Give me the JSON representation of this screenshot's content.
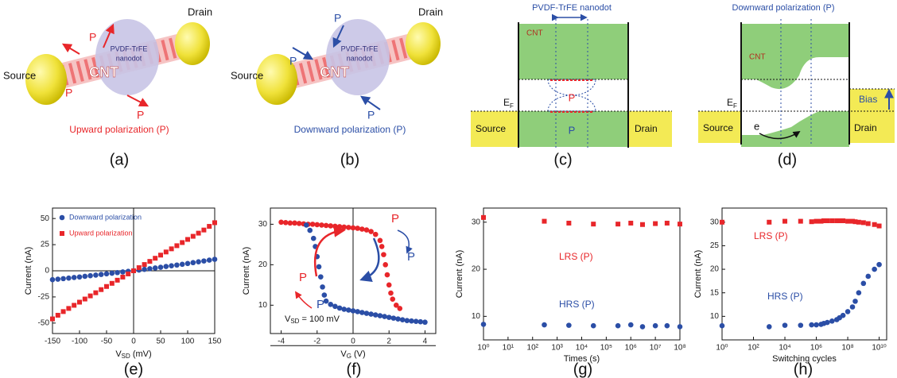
{
  "panel_labels": [
    "(a)",
    "(b)",
    "(c)",
    "(d)",
    "(e)",
    "(f)",
    "(g)",
    "(h)"
  ],
  "diagrams": {
    "a": {
      "source": "Source",
      "drain": "Drain",
      "cnt": "CNT",
      "nanodot": [
        "PVDF-TrFE",
        "nanodot"
      ],
      "p_labels": [
        "P",
        "P",
        "P"
      ],
      "caption": "Upward polarization (P)"
    },
    "b": {
      "source": "Source",
      "drain": "Drain",
      "cnt": "CNT",
      "nanodot": [
        "PVDF-TrFE",
        "nanodot"
      ],
      "p_labels": [
        "P",
        "P",
        "P"
      ],
      "caption": "Downward polarization (P)"
    },
    "c": {
      "nanodot": "PVDF-TrFE nanodot",
      "cnt": "CNT",
      "fermi": {
        "main": "E",
        "sub": "F"
      },
      "p_labels": [
        "P",
        "P"
      ],
      "source": "Source",
      "drain": "Drain"
    },
    "d": {
      "caption": "Downward polarization (P)",
      "cnt": "CNT",
      "fermi": {
        "main": "E",
        "sub": "F"
      },
      "bias": "Bias",
      "electron": "e",
      "source": "Source",
      "drain": "Drain"
    }
  },
  "chart_data": [
    {
      "type": "scatter",
      "x": [
        -150,
        -140,
        -130,
        -120,
        -110,
        -100,
        -90,
        -80,
        -70,
        -60,
        -50,
        -40,
        -30,
        -20,
        -10,
        0,
        10,
        20,
        30,
        40,
        50,
        60,
        70,
        80,
        90,
        100,
        110,
        120,
        130,
        140,
        150
      ],
      "series": [
        {
          "name": "Downward polarization",
          "color": "#2b4ea6",
          "marker": "circle",
          "values": [
            -8.5,
            -8,
            -7.5,
            -7,
            -6.4,
            -5.9,
            -5.3,
            -4.7,
            -4.1,
            -3.5,
            -2.9,
            -2.3,
            -1.7,
            -1.1,
            -0.5,
            0.1,
            0.7,
            1.4,
            2,
            2.7,
            3.4,
            4.1,
            4.8,
            5.5,
            6.2,
            7,
            7.8,
            8.6,
            9.4,
            10.2,
            11
          ]
        },
        {
          "name": "Upward polarization",
          "color": "#e8262a",
          "marker": "square",
          "values": [
            -46,
            -42.5,
            -39,
            -36,
            -33,
            -30,
            -27,
            -24,
            -21,
            -18,
            -15,
            -12,
            -9,
            -6,
            -3,
            0,
            3,
            6,
            9,
            12,
            15,
            18,
            21,
            24,
            27,
            30,
            33,
            36,
            39,
            42.5,
            46
          ]
        }
      ],
      "xlim": [
        -150,
        150
      ],
      "ylim": [
        -60,
        60
      ],
      "xticks": [
        -150,
        -100,
        -50,
        0,
        50,
        100,
        150
      ],
      "yticks": [
        -50,
        -25,
        0,
        25,
        50
      ],
      "x_label": {
        "main": "V",
        "sub": "SD",
        "rest": " (mV)"
      },
      "y_label": "Current (nA)",
      "zero_lines": true,
      "legend": "upper left"
    },
    {
      "type": "scatter",
      "series": [
        {
          "color": "#e8262a",
          "marker": "circle",
          "x": [
            -4,
            -3.75,
            -3.5,
            -3.25,
            -3,
            -2.75,
            -2.5,
            -2.25,
            -2,
            -1.75,
            -1.5,
            -1.25,
            -1,
            -0.75,
            -0.5,
            -0.25,
            0,
            0.25,
            0.5,
            0.75,
            1,
            1.25,
            1.5,
            1.6,
            1.7,
            1.8,
            1.9,
            2,
            2.1,
            2.2,
            2.4,
            2.6
          ],
          "values": [
            30.5,
            30.4,
            30.3,
            30.3,
            30.2,
            30.1,
            30,
            30,
            29.9,
            29.8,
            29.7,
            29.6,
            29.5,
            29.4,
            29.3,
            29.2,
            29.1,
            29,
            28.8,
            28.6,
            28.2,
            27.5,
            26,
            24.5,
            22.5,
            20,
            17.5,
            15,
            13,
            11.5,
            10,
            9.2
          ]
        },
        {
          "color": "#2b4ea6",
          "marker": "circle",
          "x": [
            4,
            3.75,
            3.5,
            3.25,
            3,
            2.75,
            2.5,
            2.25,
            2,
            1.75,
            1.5,
            1.25,
            1,
            0.75,
            0.5,
            0.25,
            0,
            -0.25,
            -0.5,
            -0.75,
            -1,
            -1.25,
            -1.5,
            -1.6,
            -1.7,
            -1.8,
            -1.9,
            -2,
            -2.1,
            -2.2,
            -2.4,
            -2.6
          ],
          "values": [
            5.8,
            5.9,
            6,
            6.1,
            6.2,
            6.4,
            6.6,
            6.8,
            7,
            7.2,
            7.4,
            7.6,
            7.8,
            8,
            8.2,
            8.4,
            8.6,
            8.8,
            9,
            9.3,
            9.7,
            10.2,
            11,
            12.5,
            14.5,
            17,
            19.5,
            22,
            24.5,
            26.5,
            28.5,
            29.8
          ]
        }
      ],
      "xlim": [
        -4.6,
        4.6
      ],
      "ylim": [
        3,
        34
      ],
      "xticks": [
        -4,
        -2,
        0,
        2,
        4
      ],
      "yticks": [
        10,
        20,
        30
      ],
      "x_label": {
        "main": "V",
        "sub": "G",
        "rest": " (V)"
      },
      "y_label": "Current (nA)",
      "zero_lines": true,
      "annotations": [
        "P",
        "P",
        "P",
        "P"
      ],
      "note": {
        "main": "V",
        "sub": "SD",
        "rest": " = 100 mV"
      }
    },
    {
      "type": "scatter",
      "xlog": true,
      "x": [
        1,
        300,
        3000,
        30000,
        300000,
        1000000,
        3000000,
        10000000,
        30000000,
        100000000
      ],
      "series": [
        {
          "color": "#e8262a",
          "marker": "square",
          "values": [
            31,
            30.2,
            29.8,
            29.6,
            29.6,
            29.8,
            29.5,
            29.7,
            29.8,
            29.6
          ]
        },
        {
          "color": "#2b4ea6",
          "marker": "circle",
          "values": [
            8.3,
            8.2,
            8.1,
            8,
            8,
            8.2,
            7.8,
            8,
            8,
            7.8
          ]
        }
      ],
      "xlim": [
        1,
        100000000
      ],
      "ylim": [
        5,
        33
      ],
      "xticks": [
        {
          "value": 1,
          "label": "10⁰"
        },
        {
          "value": 10,
          "label": "10¹"
        },
        {
          "value": 100,
          "label": "10²"
        },
        {
          "value": 1000,
          "label": "10³"
        },
        {
          "value": 10000,
          "label": "10⁴"
        },
        {
          "value": 100000,
          "label": "10⁵"
        },
        {
          "value": 1000000,
          "label": "10⁶"
        },
        {
          "value": 10000000,
          "label": "10⁷"
        },
        {
          "value": 100000000,
          "label": "10⁸"
        }
      ],
      "yticks": [
        10,
        20,
        30
      ],
      "x_label": "Times (s)",
      "y_label": "Current (nA)",
      "annotations": [
        "LRS (P)",
        "HRS (P)"
      ]
    },
    {
      "type": "scatter",
      "xlog": true,
      "x": [
        1,
        1000,
        10000,
        100000,
        500000,
        1000000,
        2000000,
        3000000,
        5000000,
        10000000,
        20000000,
        30000000,
        50000000,
        100000000,
        200000000,
        300000000,
        500000000,
        1000000000,
        2000000000,
        5000000000,
        10000000000
      ],
      "series": [
        {
          "color": "#e8262a",
          "marker": "square",
          "values": [
            30,
            30,
            30.2,
            30.2,
            30.1,
            30.2,
            30.2,
            30.3,
            30.3,
            30.3,
            30.3,
            30.3,
            30.3,
            30.2,
            30.2,
            30.1,
            30,
            29.9,
            29.7,
            29.5,
            29.2
          ]
        },
        {
          "color": "#2b4ea6",
          "marker": "circle",
          "values": [
            8,
            7.8,
            8.1,
            8.1,
            8.2,
            8.2,
            8.3,
            8.5,
            8.7,
            9,
            9.3,
            9.7,
            10.2,
            11,
            12,
            13.2,
            15,
            17,
            18.5,
            20,
            21
          ]
        }
      ],
      "xlim": [
        1,
        30000000000
      ],
      "ylim": [
        5,
        33
      ],
      "xticks": [
        {
          "value": 1,
          "label": "10⁰"
        },
        {
          "value": 100,
          "label": "10²"
        },
        {
          "value": 10000,
          "label": "10⁴"
        },
        {
          "value": 1000000,
          "label": "10⁶"
        },
        {
          "value": 100000000,
          "label": "10⁸"
        },
        {
          "value": 10000000000,
          "label": "10¹⁰"
        }
      ],
      "yticks": [
        10,
        15,
        20,
        25,
        30
      ],
      "x_label": "Switching cycles",
      "y_label": "Current (nA)",
      "annotations": [
        "LRS (P)",
        "HRS (P)"
      ]
    }
  ]
}
